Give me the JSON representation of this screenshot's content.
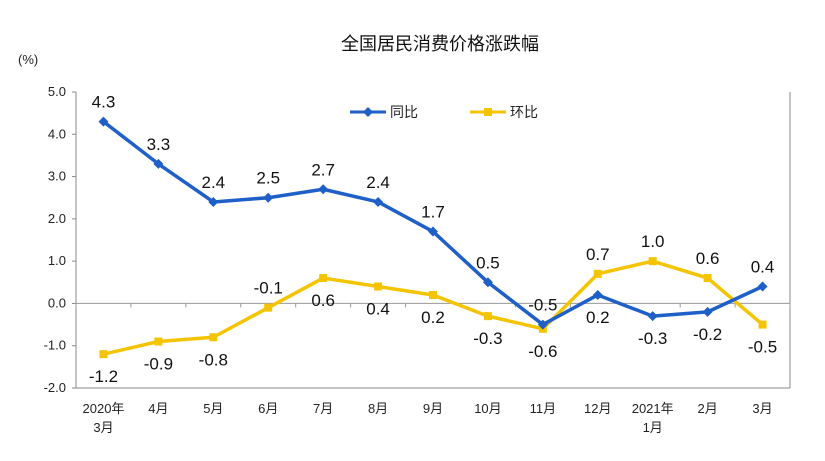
{
  "chart_data": {
    "type": "line",
    "title": "全国居民消费价格涨跌幅",
    "y_unit_label": "(%)",
    "ylim": [
      -2.0,
      5.0
    ],
    "y_ticks": [
      "5.0",
      "4.0",
      "3.0",
      "2.0",
      "1.0",
      "0.0",
      "-1.0",
      "-2.0"
    ],
    "categories": [
      [
        "2020年",
        "3月"
      ],
      [
        "4月"
      ],
      [
        "5月"
      ],
      [
        "6月"
      ],
      [
        "7月"
      ],
      [
        "8月"
      ],
      [
        "9月"
      ],
      [
        "10月"
      ],
      [
        "11月"
      ],
      [
        "12月"
      ],
      [
        "2021年",
        "1月"
      ],
      [
        "2月"
      ],
      [
        "3月"
      ]
    ],
    "legend_position": "top-center",
    "series": [
      {
        "name": "同比",
        "color": "#1f5fc8",
        "marker": "diamond",
        "values": [
          4.3,
          3.3,
          2.4,
          2.5,
          2.7,
          2.4,
          1.7,
          0.5,
          -0.5,
          0.2,
          -0.3,
          -0.2,
          0.4
        ],
        "labels": [
          "4.3",
          "3.3",
          "2.4",
          "2.5",
          "2.7",
          "2.4",
          "1.7",
          "0.5",
          "-0.5",
          "0.2",
          "-0.3",
          "-0.2",
          "0.4"
        ]
      },
      {
        "name": "环比",
        "color": "#f5c400",
        "marker": "square",
        "values": [
          -1.2,
          -0.9,
          -0.8,
          -0.1,
          0.6,
          0.4,
          0.2,
          -0.3,
          -0.6,
          0.7,
          1.0,
          0.6,
          -0.5
        ],
        "labels": [
          "-1.2",
          "-0.9",
          "-0.8",
          "-0.1",
          "0.6",
          "0.4",
          "0.2",
          "-0.3",
          "-0.6",
          "0.7",
          "1.0",
          "0.6",
          "-0.5"
        ]
      }
    ]
  }
}
